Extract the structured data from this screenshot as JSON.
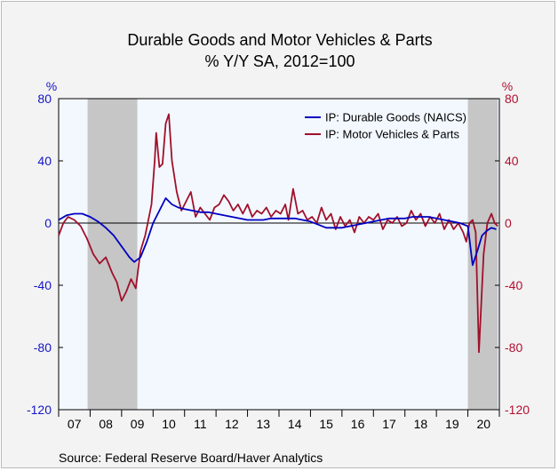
{
  "chart_data": {
    "type": "line",
    "title": "Durable Goods and Motor Vehicles & Parts",
    "subtitle": "% Y/Y   SA, 2012=100",
    "y_unit_left": "%",
    "y_unit_right": "%",
    "ylim": [
      -120,
      80
    ],
    "yticks": [
      80,
      40,
      0,
      -40,
      -80,
      -120
    ],
    "xlim": [
      2007,
      2021
    ],
    "x_tick_labels": [
      "07",
      "08",
      "09",
      "10",
      "11",
      "12",
      "13",
      "14",
      "15",
      "16",
      "17",
      "18",
      "19",
      "20"
    ],
    "recessions": [
      [
        2007.92,
        2009.5
      ],
      [
        2020.0,
        2020.95
      ]
    ],
    "legend_position": "top-right",
    "source": "Source:  Federal Reserve Board/Haver Analytics",
    "colors": {
      "series1": "#0000c0",
      "series2": "#a0102a",
      "plot_bg": "#f3f8ff",
      "recession": "#c6c6c6"
    },
    "series": [
      {
        "name": "IP: Durable Goods (NAICS)",
        "x": [
          2007.0,
          2007.25,
          2007.5,
          2007.75,
          2008.0,
          2008.25,
          2008.5,
          2008.75,
          2009.0,
          2009.25,
          2009.4,
          2009.6,
          2009.8,
          2010.0,
          2010.2,
          2010.4,
          2010.6,
          2010.8,
          2011.0,
          2011.25,
          2011.5,
          2011.75,
          2012.0,
          2012.25,
          2012.5,
          2012.75,
          2013.0,
          2013.25,
          2013.5,
          2013.75,
          2014.0,
          2014.25,
          2014.5,
          2014.75,
          2015.0,
          2015.25,
          2015.5,
          2015.75,
          2016.0,
          2016.25,
          2016.5,
          2016.75,
          2017.0,
          2017.25,
          2017.5,
          2017.75,
          2018.0,
          2018.25,
          2018.5,
          2018.75,
          2019.0,
          2019.25,
          2019.5,
          2019.75,
          2020.0,
          2020.15,
          2020.3,
          2020.45,
          2020.6,
          2020.75,
          2020.9
        ],
        "values": [
          2,
          5,
          6,
          6,
          4,
          1,
          -3,
          -8,
          -15,
          -22,
          -25,
          -22,
          -12,
          0,
          8,
          16,
          12,
          10,
          9,
          8,
          7,
          7,
          6,
          5,
          4,
          3,
          2,
          2,
          2,
          3,
          3,
          3,
          3,
          2,
          1,
          -1,
          -3,
          -3,
          -3,
          -2,
          -1,
          0,
          1,
          2,
          3,
          3,
          3,
          4,
          4,
          4,
          3,
          2,
          1,
          0,
          -2,
          -27,
          -18,
          -8,
          -5,
          -3,
          -4
        ]
      },
      {
        "name": "IP: Motor Vehicles & Parts",
        "x": [
          2007.0,
          2007.15,
          2007.3,
          2007.5,
          2007.7,
          2007.9,
          2008.1,
          2008.3,
          2008.5,
          2008.7,
          2008.85,
          2009.0,
          2009.15,
          2009.3,
          2009.45,
          2009.6,
          2009.75,
          2009.85,
          2009.95,
          2010.05,
          2010.1,
          2010.2,
          2010.3,
          2010.4,
          2010.5,
          2010.6,
          2010.75,
          2010.9,
          2011.05,
          2011.2,
          2011.35,
          2011.5,
          2011.65,
          2011.8,
          2011.95,
          2012.1,
          2012.25,
          2012.4,
          2012.55,
          2012.7,
          2012.85,
          2013.0,
          2013.15,
          2013.3,
          2013.45,
          2013.6,
          2013.75,
          2013.9,
          2014.05,
          2014.2,
          2014.3,
          2014.45,
          2014.6,
          2014.75,
          2014.9,
          2015.05,
          2015.2,
          2015.35,
          2015.5,
          2015.65,
          2015.8,
          2015.95,
          2016.1,
          2016.25,
          2016.4,
          2016.55,
          2016.7,
          2016.85,
          2017.0,
          2017.15,
          2017.3,
          2017.45,
          2017.6,
          2017.75,
          2017.9,
          2018.05,
          2018.2,
          2018.35,
          2018.5,
          2018.65,
          2018.8,
          2018.95,
          2019.1,
          2019.25,
          2019.4,
          2019.55,
          2019.7,
          2019.85,
          2019.95,
          2020.05,
          2020.15,
          2020.25,
          2020.35,
          2020.5,
          2020.62,
          2020.75,
          2020.85,
          2020.95
        ],
        "values": [
          -8,
          0,
          4,
          2,
          -2,
          -10,
          -20,
          -26,
          -22,
          -32,
          -38,
          -50,
          -44,
          -36,
          -42,
          -18,
          -8,
          2,
          12,
          40,
          58,
          36,
          38,
          64,
          70,
          40,
          20,
          8,
          14,
          20,
          4,
          10,
          6,
          2,
          10,
          12,
          18,
          14,
          8,
          12,
          6,
          12,
          4,
          8,
          6,
          10,
          4,
          8,
          6,
          12,
          2,
          22,
          6,
          8,
          2,
          4,
          0,
          10,
          2,
          6,
          -4,
          4,
          -2,
          2,
          -6,
          4,
          0,
          4,
          2,
          6,
          -4,
          2,
          0,
          4,
          -2,
          0,
          8,
          2,
          6,
          -2,
          4,
          0,
          6,
          -4,
          2,
          -4,
          0,
          -6,
          -12,
          0,
          2,
          -6,
          -83,
          -20,
          0,
          6,
          0,
          -2
        ]
      }
    ]
  }
}
